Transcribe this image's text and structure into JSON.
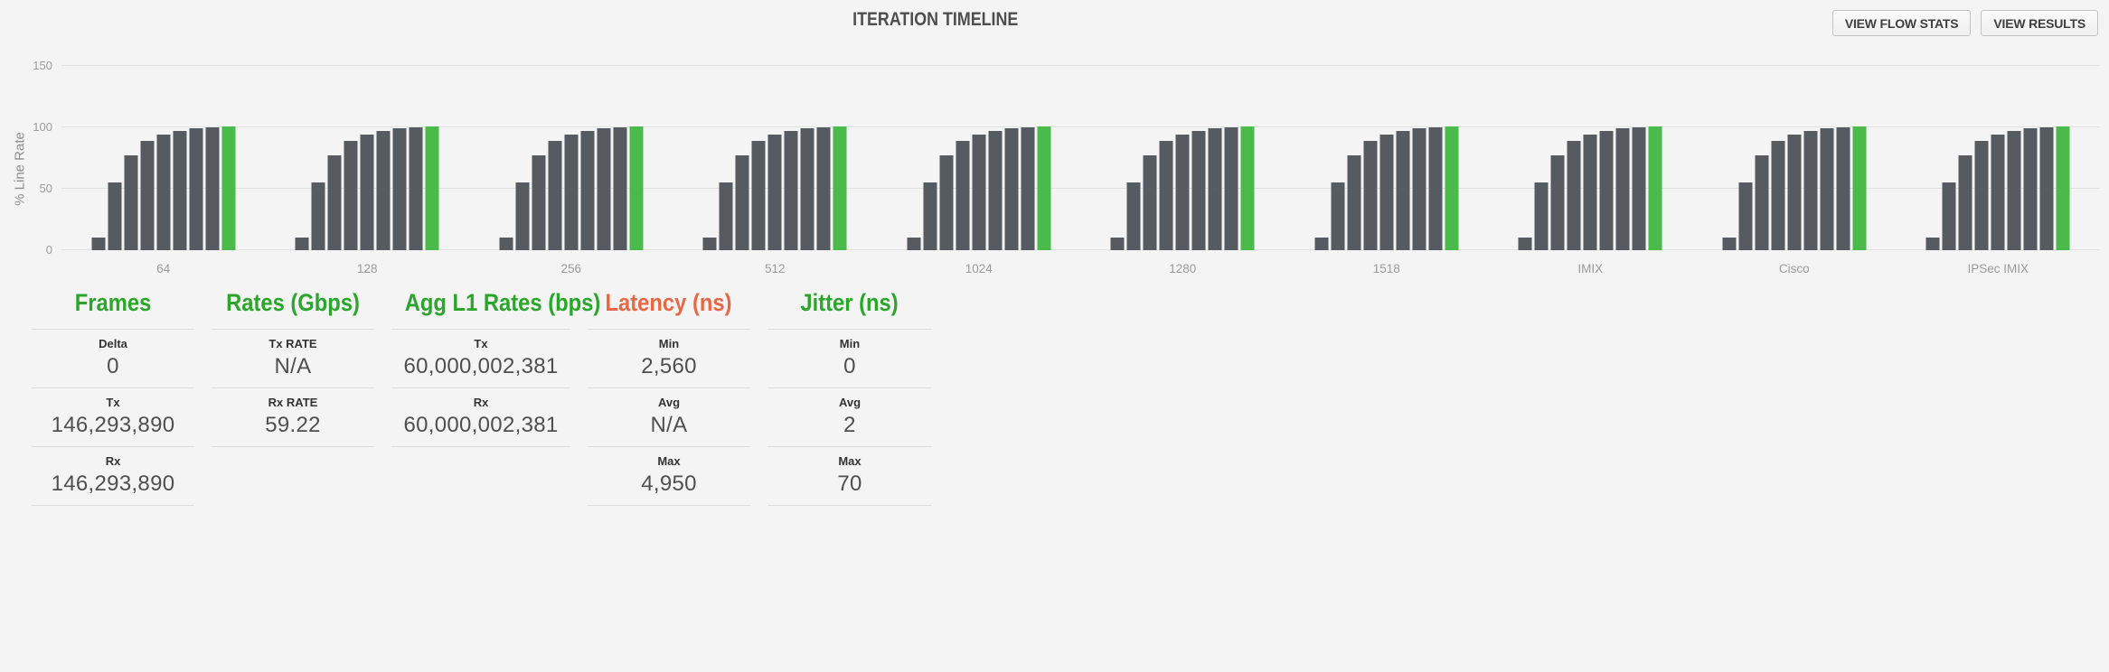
{
  "header": {
    "title": "ITERATION TIMELINE",
    "buttons": [
      {
        "label": "VIEW FLOW STATS"
      },
      {
        "label": "VIEW RESULTS"
      }
    ]
  },
  "chart_data": {
    "type": "bar",
    "title": "ITERATION TIMELINE",
    "ylabel": "% Line Rate",
    "ylim": [
      0,
      150
    ],
    "yticks": [
      150,
      100,
      50,
      0
    ],
    "grid": true,
    "legend_position": "none",
    "bar_color": "#565b61",
    "final_bar_color": "#4abb4a",
    "final_bar_index": 8,
    "categories": [
      "64",
      "128",
      "256",
      "512",
      "1024",
      "1280",
      "1518",
      "IMIX",
      "Cisco",
      "IPSec IMIX"
    ],
    "groups": [
      {
        "label": "64",
        "values_pct": [
          10,
          55,
          77,
          89,
          94,
          97,
          99,
          100,
          101
        ]
      },
      {
        "label": "128",
        "values_pct": [
          10,
          55,
          77,
          89,
          94,
          97,
          99,
          100,
          101
        ]
      },
      {
        "label": "256",
        "values_pct": [
          10,
          55,
          77,
          89,
          94,
          97,
          99,
          100,
          101
        ]
      },
      {
        "label": "512",
        "values_pct": [
          10,
          55,
          77,
          89,
          94,
          97,
          99,
          100,
          101
        ]
      },
      {
        "label": "1024",
        "values_pct": [
          10,
          55,
          77,
          89,
          94,
          97,
          99,
          100,
          101
        ]
      },
      {
        "label": "1280",
        "values_pct": [
          10,
          55,
          77,
          89,
          94,
          97,
          99,
          100,
          101
        ]
      },
      {
        "label": "1518",
        "values_pct": [
          10,
          55,
          77,
          89,
          94,
          97,
          99,
          100,
          101
        ]
      },
      {
        "label": "IMIX",
        "values_pct": [
          10,
          55,
          77,
          89,
          94,
          97,
          99,
          100,
          101
        ]
      },
      {
        "label": "Cisco",
        "values_pct": [
          10,
          55,
          77,
          89,
          94,
          97,
          99,
          100,
          101
        ]
      },
      {
        "label": "IPSec IMIX",
        "values_pct": [
          10,
          55,
          77,
          89,
          94,
          97,
          99,
          100,
          101
        ]
      }
    ]
  },
  "table": {
    "columns": [
      {
        "header": "Frames",
        "color": "#2aa62a",
        "rows": [
          {
            "label": "Delta",
            "value": "0"
          },
          {
            "label": "Tx",
            "value": "146,293,890"
          },
          {
            "label": "Rx",
            "value": "146,293,890"
          }
        ]
      },
      {
        "header": "Rates (Gbps)",
        "color": "#2aa62a",
        "rows": [
          {
            "label": "Tx RATE",
            "value": "N/A"
          },
          {
            "label": "Rx RATE",
            "value": "59.22"
          }
        ]
      },
      {
        "header": "Agg L1 Rates (bps)",
        "color": "#2aa62a",
        "rows": [
          {
            "label": "Tx",
            "value": "60,000,002,381"
          },
          {
            "label": "Rx",
            "value": "60,000,002,381"
          }
        ]
      },
      {
        "header": "Latency (ns)",
        "color": "#e76844",
        "rows": [
          {
            "label": "Min",
            "value": "2,560"
          },
          {
            "label": "Avg",
            "value": "N/A"
          },
          {
            "label": "Max",
            "value": "4,950"
          }
        ]
      },
      {
        "header": "Jitter (ns)",
        "color": "#2aa62a",
        "rows": [
          {
            "label": "Min",
            "value": "0"
          },
          {
            "label": "Avg",
            "value": "2"
          },
          {
            "label": "Max",
            "value": "70"
          }
        ]
      }
    ]
  }
}
